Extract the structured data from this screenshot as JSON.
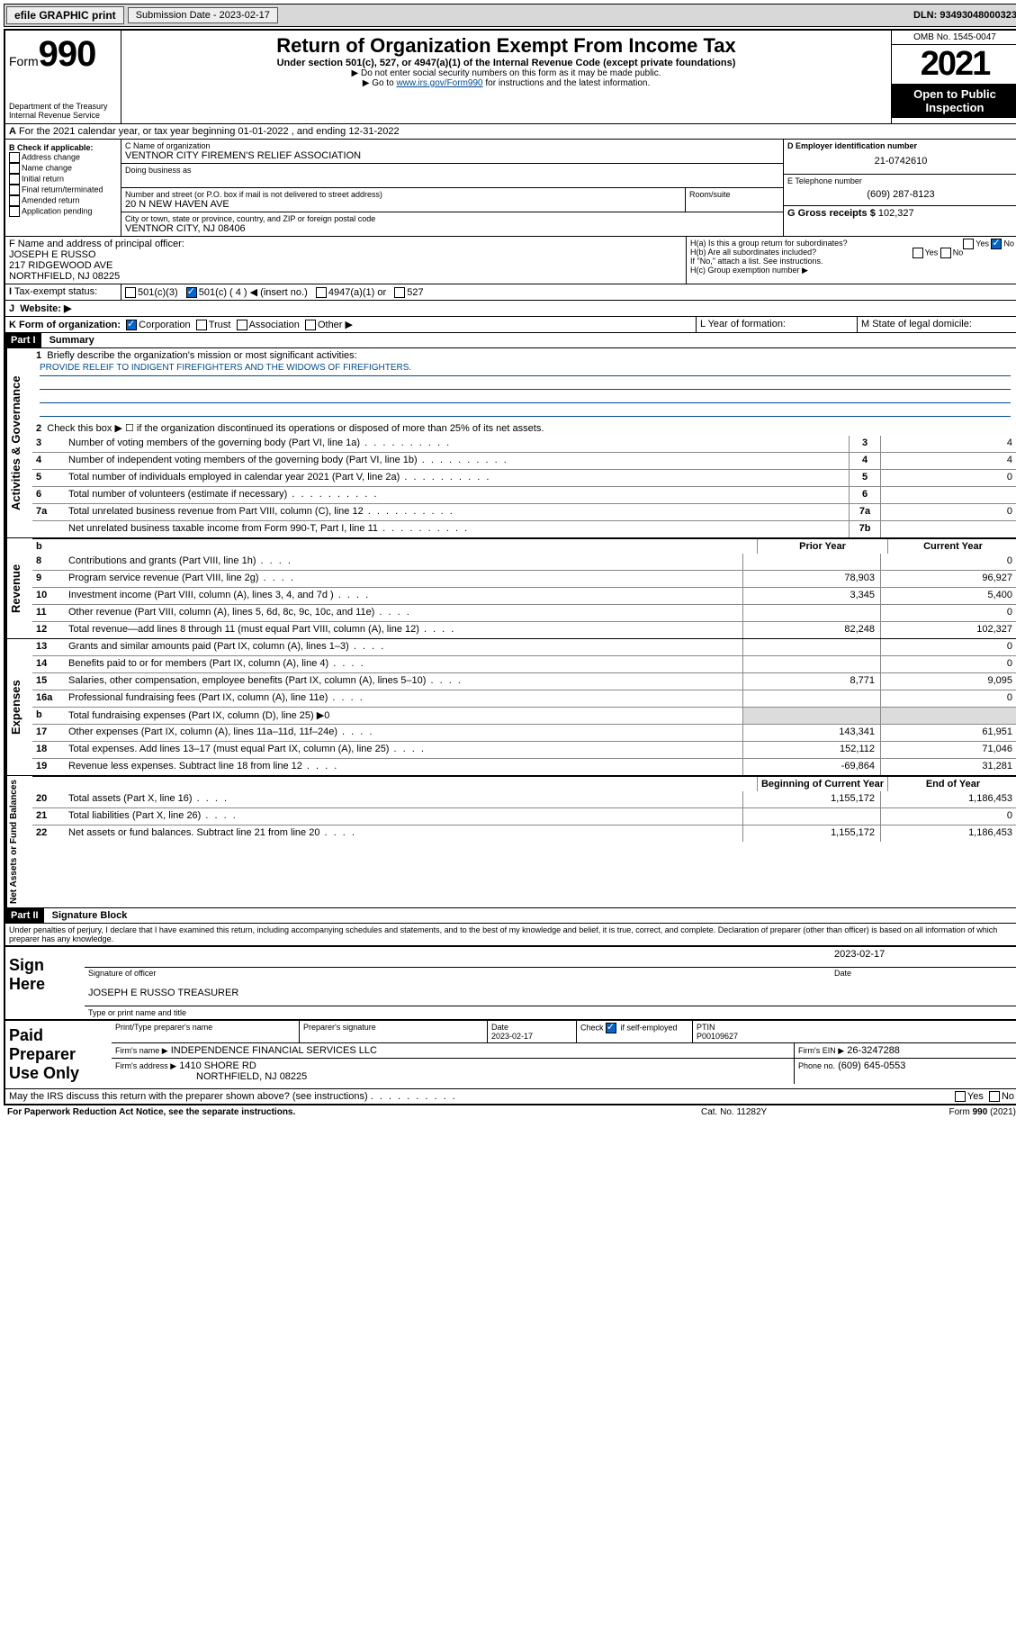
{
  "topbar": {
    "efile": "efile GRAPHIC print",
    "submission_label": "Submission Date - 2023-02-17",
    "dln": "DLN: 93493048000323"
  },
  "header": {
    "form_prefix": "Form",
    "form_num": "990",
    "dept": "Department of the Treasury",
    "irs": "Internal Revenue Service",
    "title": "Return of Organization Exempt From Income Tax",
    "sub": "Under section 501(c), 527, or 4947(a)(1) of the Internal Revenue Code (except private foundations)",
    "note1": "▶ Do not enter social security numbers on this form as it may be made public.",
    "note2_pre": "▶ Go to ",
    "note2_link": "www.irs.gov/Form990",
    "note2_post": " for instructions and the latest information.",
    "omb": "OMB No. 1545-0047",
    "year": "2021",
    "open": "Open to Public Inspection"
  },
  "periodA": "For the 2021 calendar year, or tax year beginning 01-01-2022   , and ending 12-31-2022",
  "boxB": {
    "label": "B Check if applicable:",
    "opts": [
      "Address change",
      "Name change",
      "Initial return",
      "Final return/terminated",
      "Amended return",
      "Application pending"
    ]
  },
  "boxC": {
    "name_lbl": "C Name of organization",
    "name": "VENTNOR CITY FIREMEN'S RELIEF ASSOCIATION",
    "dba_lbl": "Doing business as",
    "addr_lbl": "Number and street (or P.O. box if mail is not delivered to street address)",
    "room_lbl": "Room/suite",
    "addr": "20 N NEW HAVEN AVE",
    "city_lbl": "City or town, state or province, country, and ZIP or foreign postal code",
    "city": "VENTNOR CITY, NJ  08406"
  },
  "boxD": {
    "lbl": "D Employer identification number",
    "val": "21-0742610"
  },
  "boxE": {
    "lbl": "E Telephone number",
    "val": "(609) 287-8123"
  },
  "boxG": {
    "lbl": "G Gross receipts $",
    "val": "102,327"
  },
  "boxF": {
    "lbl": "F  Name and address of principal officer:",
    "name": "JOSEPH E RUSSO",
    "addr1": "217 RIDGEWOOD AVE",
    "addr2": "NORTHFIELD, NJ  08225"
  },
  "boxH": {
    "a": "H(a)  Is this a group return for subordinates?",
    "b": "H(b)  Are all subordinates included?",
    "note": "If \"No,\" attach a list. See instructions.",
    "c": "H(c)  Group exemption number ▶"
  },
  "boxI": {
    "lbl": "Tax-exempt status:",
    "o1": "501(c)(3)",
    "o2": "501(c) ( 4 ) ◀ (insert no.)",
    "o3": "4947(a)(1) or",
    "o4": "527"
  },
  "boxJ": "Website: ▶",
  "boxK": {
    "lbl": "K Form of organization:",
    "o1": "Corporation",
    "o2": "Trust",
    "o3": "Association",
    "o4": "Other ▶"
  },
  "boxL": "L Year of formation:",
  "boxM": "M State of legal domicile:",
  "part1": {
    "hdr": "Part I",
    "title": "Summary"
  },
  "line1": {
    "lbl": "Briefly describe the organization's mission or most significant activities:",
    "text": "PROVIDE RELEIF TO INDIGENT FIREFIGHTERS AND THE WIDOWS OF FIREFIGHTERS."
  },
  "line2": "Check this box ▶ ☐  if the organization discontinued its operations or disposed of more than 25% of its net assets.",
  "govRows": [
    {
      "n": "3",
      "d": "Number of voting members of the governing body (Part VI, line 1a)",
      "b": "3",
      "v": "4"
    },
    {
      "n": "4",
      "d": "Number of independent voting members of the governing body (Part VI, line 1b)",
      "b": "4",
      "v": "4"
    },
    {
      "n": "5",
      "d": "Total number of individuals employed in calendar year 2021 (Part V, line 2a)",
      "b": "5",
      "v": "0"
    },
    {
      "n": "6",
      "d": "Total number of volunteers (estimate if necessary)",
      "b": "6",
      "v": ""
    },
    {
      "n": "7a",
      "d": "Total unrelated business revenue from Part VIII, column (C), line 12",
      "b": "7a",
      "v": "0"
    },
    {
      "n": "",
      "d": "Net unrelated business taxable income from Form 990-T, Part I, line 11",
      "b": "7b",
      "v": ""
    }
  ],
  "colHdr": {
    "b": "b",
    "prior": "Prior Year",
    "curr": "Current Year"
  },
  "revRows": [
    {
      "n": "8",
      "d": "Contributions and grants (Part VIII, line 1h)",
      "p": "",
      "c": "0"
    },
    {
      "n": "9",
      "d": "Program service revenue (Part VIII, line 2g)",
      "p": "78,903",
      "c": "96,927"
    },
    {
      "n": "10",
      "d": "Investment income (Part VIII, column (A), lines 3, 4, and 7d )",
      "p": "3,345",
      "c": "5,400"
    },
    {
      "n": "11",
      "d": "Other revenue (Part VIII, column (A), lines 5, 6d, 8c, 9c, 10c, and 11e)",
      "p": "",
      "c": "0"
    },
    {
      "n": "12",
      "d": "Total revenue—add lines 8 through 11 (must equal Part VIII, column (A), line 12)",
      "p": "82,248",
      "c": "102,327"
    }
  ],
  "expRows": [
    {
      "n": "13",
      "d": "Grants and similar amounts paid (Part IX, column (A), lines 1–3)",
      "p": "",
      "c": "0"
    },
    {
      "n": "14",
      "d": "Benefits paid to or for members (Part IX, column (A), line 4)",
      "p": "",
      "c": "0"
    },
    {
      "n": "15",
      "d": "Salaries, other compensation, employee benefits (Part IX, column (A), lines 5–10)",
      "p": "8,771",
      "c": "9,095"
    },
    {
      "n": "16a",
      "d": "Professional fundraising fees (Part IX, column (A), line 11e)",
      "p": "",
      "c": "0"
    },
    {
      "n": "b",
      "d": "Total fundraising expenses (Part IX, column (D), line 25) ▶0",
      "gray": true
    },
    {
      "n": "17",
      "d": "Other expenses (Part IX, column (A), lines 11a–11d, 11f–24e)",
      "p": "143,341",
      "c": "61,951"
    },
    {
      "n": "18",
      "d": "Total expenses. Add lines 13–17 (must equal Part IX, column (A), line 25)",
      "p": "152,112",
      "c": "71,046"
    },
    {
      "n": "19",
      "d": "Revenue less expenses. Subtract line 18 from line 12",
      "p": "-69,864",
      "c": "31,281"
    }
  ],
  "naHdr": {
    "prior": "Beginning of Current Year",
    "curr": "End of Year"
  },
  "naRows": [
    {
      "n": "20",
      "d": "Total assets (Part X, line 16)",
      "p": "1,155,172",
      "c": "1,186,453"
    },
    {
      "n": "21",
      "d": "Total liabilities (Part X, line 26)",
      "p": "",
      "c": "0"
    },
    {
      "n": "22",
      "d": "Net assets or fund balances. Subtract line 21 from line 20",
      "p": "1,155,172",
      "c": "1,186,453"
    }
  ],
  "part2": {
    "hdr": "Part II",
    "title": "Signature Block"
  },
  "sigDecl": "Under penalties of perjury, I declare that I have examined this return, including accompanying schedules and statements, and to the best of my knowledge and belief, it is true, correct, and complete. Declaration of preparer (other than officer) is based on all information of which preparer has any knowledge.",
  "sign": {
    "here": "Sign Here",
    "date": "2023-02-17",
    "sig_lbl": "Signature of officer",
    "date_lbl": "Date",
    "name": "JOSEPH E RUSSO  TREASURER",
    "name_lbl": "Type or print name and title"
  },
  "prep": {
    "title": "Paid Preparer Use Only",
    "h1": "Print/Type preparer's name",
    "h2": "Preparer's signature",
    "h3": "Date",
    "h4": "Check ☑ if self-employed",
    "h5": "PTIN",
    "date": "2023-02-17",
    "ptin": "P00109627",
    "firm_lbl": "Firm's name   ▶",
    "firm": "INDEPENDENCE FINANCIAL SERVICES LLC",
    "ein_lbl": "Firm's EIN ▶",
    "ein": "26-3247288",
    "addr_lbl": "Firm's address ▶",
    "addr1": "1410 SHORE RD",
    "addr2": "NORTHFIELD, NJ  08225",
    "phone_lbl": "Phone no.",
    "phone": "(609) 645-0553"
  },
  "discuss": "May the IRS discuss this return with the preparer shown above? (see instructions)",
  "footer": {
    "pra": "For Paperwork Reduction Act Notice, see the separate instructions.",
    "cat": "Cat. No. 11282Y",
    "form": "Form 990 (2021)"
  }
}
